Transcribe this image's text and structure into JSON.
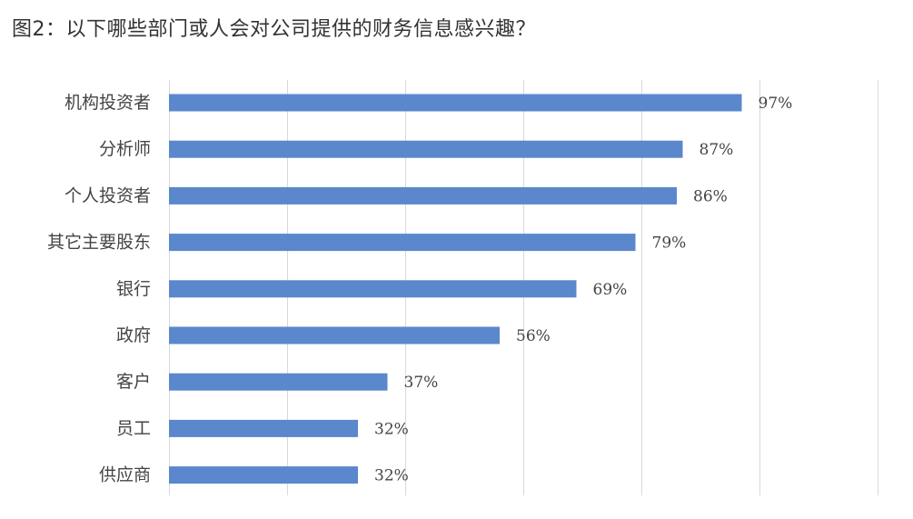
{
  "title": "图2：以下哪些部门或人会对公司提供的财务信息感兴趣？",
  "chart_data": {
    "type": "bar",
    "orientation": "horizontal",
    "categories": [
      "机构投资者",
      "分析师",
      "个人投资者",
      "其它主要股东",
      "银行",
      "政府",
      "客户",
      "员工",
      "供应商"
    ],
    "values": [
      97,
      87,
      86,
      79,
      69,
      56,
      37,
      32,
      32
    ],
    "value_labels": [
      "97%",
      "87%",
      "86%",
      "79%",
      "69%",
      "56%",
      "37%",
      "32%",
      "32%"
    ],
    "xlim": [
      0,
      120
    ],
    "grid": true,
    "bar_color": "#5b87cc",
    "grid_color": "#d9d9d9"
  }
}
